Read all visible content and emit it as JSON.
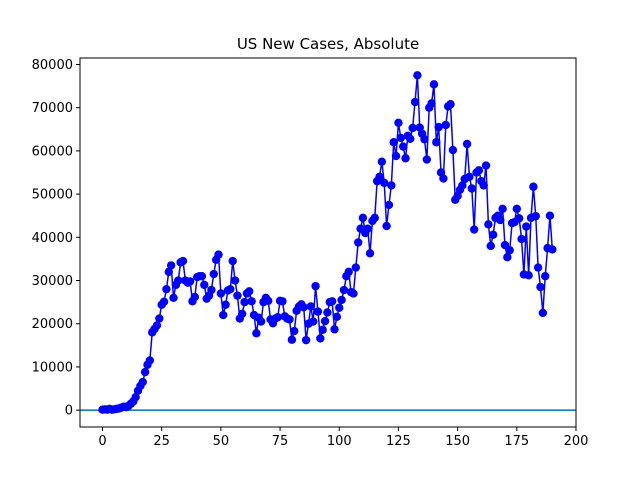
{
  "chart_data": {
    "type": "line",
    "title": "US New Cases, Absolute",
    "xlabel": "",
    "ylabel": "",
    "xlim": [
      -9.5,
      200
    ],
    "ylim": [
      -3900,
      81500
    ],
    "xticks": [
      0,
      25,
      50,
      75,
      100,
      125,
      150,
      175,
      200
    ],
    "yticks": [
      0,
      10000,
      20000,
      30000,
      40000,
      50000,
      60000,
      70000,
      80000
    ],
    "grid": false,
    "colors": {
      "series": "#0000ff",
      "zero_line": "#1f77b4"
    },
    "reference_line": {
      "y": 0
    },
    "series": [
      {
        "marker": "circle",
        "x": [
          0,
          1,
          2,
          3,
          4,
          5,
          6,
          7,
          8,
          9,
          10,
          11,
          12,
          13,
          14,
          15,
          16,
          17,
          18,
          19,
          20,
          21,
          22,
          23,
          24,
          25,
          26,
          27,
          28,
          29,
          30,
          31,
          32,
          33,
          34,
          35,
          36,
          37,
          38,
          39,
          40,
          41,
          42,
          43,
          44,
          45,
          46,
          47,
          48,
          49,
          50,
          51,
          52,
          53,
          54,
          55,
          56,
          57,
          58,
          59,
          60,
          61,
          62,
          63,
          64,
          65,
          66,
          67,
          68,
          69,
          70,
          71,
          72,
          73,
          74,
          75,
          76,
          77,
          78,
          79,
          80,
          81,
          82,
          83,
          84,
          85,
          86,
          87,
          88,
          89,
          90,
          91,
          92,
          93,
          94,
          95,
          96,
          97,
          98,
          99,
          100,
          101,
          102,
          103,
          104,
          105,
          106,
          107,
          108,
          109,
          110,
          111,
          112,
          113,
          114,
          115,
          116,
          117,
          118,
          119,
          120,
          121,
          122,
          123,
          124,
          125,
          126,
          127,
          128,
          129,
          130,
          131,
          132,
          133,
          134,
          135,
          136,
          137,
          138,
          139,
          140,
          141,
          142,
          143,
          144,
          145,
          146,
          147,
          148,
          149,
          150,
          151,
          152,
          153,
          154,
          155,
          156,
          157,
          158,
          159,
          160,
          161,
          162,
          163,
          164,
          165,
          166,
          167,
          168,
          169,
          170,
          171,
          172,
          173,
          174,
          175,
          176,
          177,
          178,
          179,
          180,
          181,
          182,
          183,
          184,
          185,
          186,
          187,
          188,
          189,
          190
        ],
        "y": [
          100,
          200,
          100,
          300,
          100,
          200,
          300,
          400,
          600,
          800,
          700,
          1000,
          1500,
          2000,
          3000,
          4500,
          5600,
          6500,
          8800,
          10500,
          11500,
          18000,
          18800,
          19600,
          21200,
          24400,
          25100,
          28000,
          32000,
          33500,
          26000,
          29000,
          30000,
          34200,
          34500,
          30000,
          29500,
          29800,
          25200,
          26200,
          30800,
          31000,
          31000,
          29000,
          25800,
          26500,
          27800,
          31500,
          34800,
          36000,
          27000,
          22000,
          24400,
          27700,
          28000,
          34500,
          30000,
          26500,
          21200,
          22300,
          25000,
          27000,
          27500,
          25200,
          22000,
          17800,
          21400,
          20500,
          25000,
          26000,
          25300,
          21000,
          20100,
          21200,
          21500,
          25300,
          25200,
          21700,
          21200,
          21000,
          16300,
          18300,
          23000,
          24000,
          24500,
          23800,
          16200,
          20000,
          24000,
          20500,
          28700,
          22800,
          16600,
          18600,
          20600,
          22600,
          25000,
          25200,
          18700,
          21600,
          23700,
          25500,
          27800,
          31000,
          32000,
          27300,
          27000,
          33000,
          38800,
          42000,
          44500,
          41000,
          42000,
          36300,
          43800,
          44500,
          53000,
          54000,
          57500,
          52600,
          42600,
          47500,
          52000,
          62000,
          58800,
          66500,
          63000,
          61000,
          58300,
          63500,
          62800,
          65300,
          71300,
          77500,
          65400,
          64000,
          62700,
          58000,
          70000,
          71000,
          75400,
          62000,
          65500,
          55000,
          53600,
          66000,
          70300,
          70800,
          60200,
          48700,
          49600,
          51000,
          52000,
          53500,
          61600,
          54000,
          51300,
          41800,
          55000,
          55500,
          53000,
          52000,
          56600,
          43000,
          38000,
          40600,
          44500,
          45000,
          44000,
          46600,
          38200,
          35400,
          37000,
          43300,
          43500,
          46600,
          44400,
          39600,
          31400,
          42500,
          31200,
          44500,
          51700,
          44900,
          33000,
          28500,
          22500,
          31000,
          37500,
          45000,
          37200
        ]
      }
    ]
  }
}
